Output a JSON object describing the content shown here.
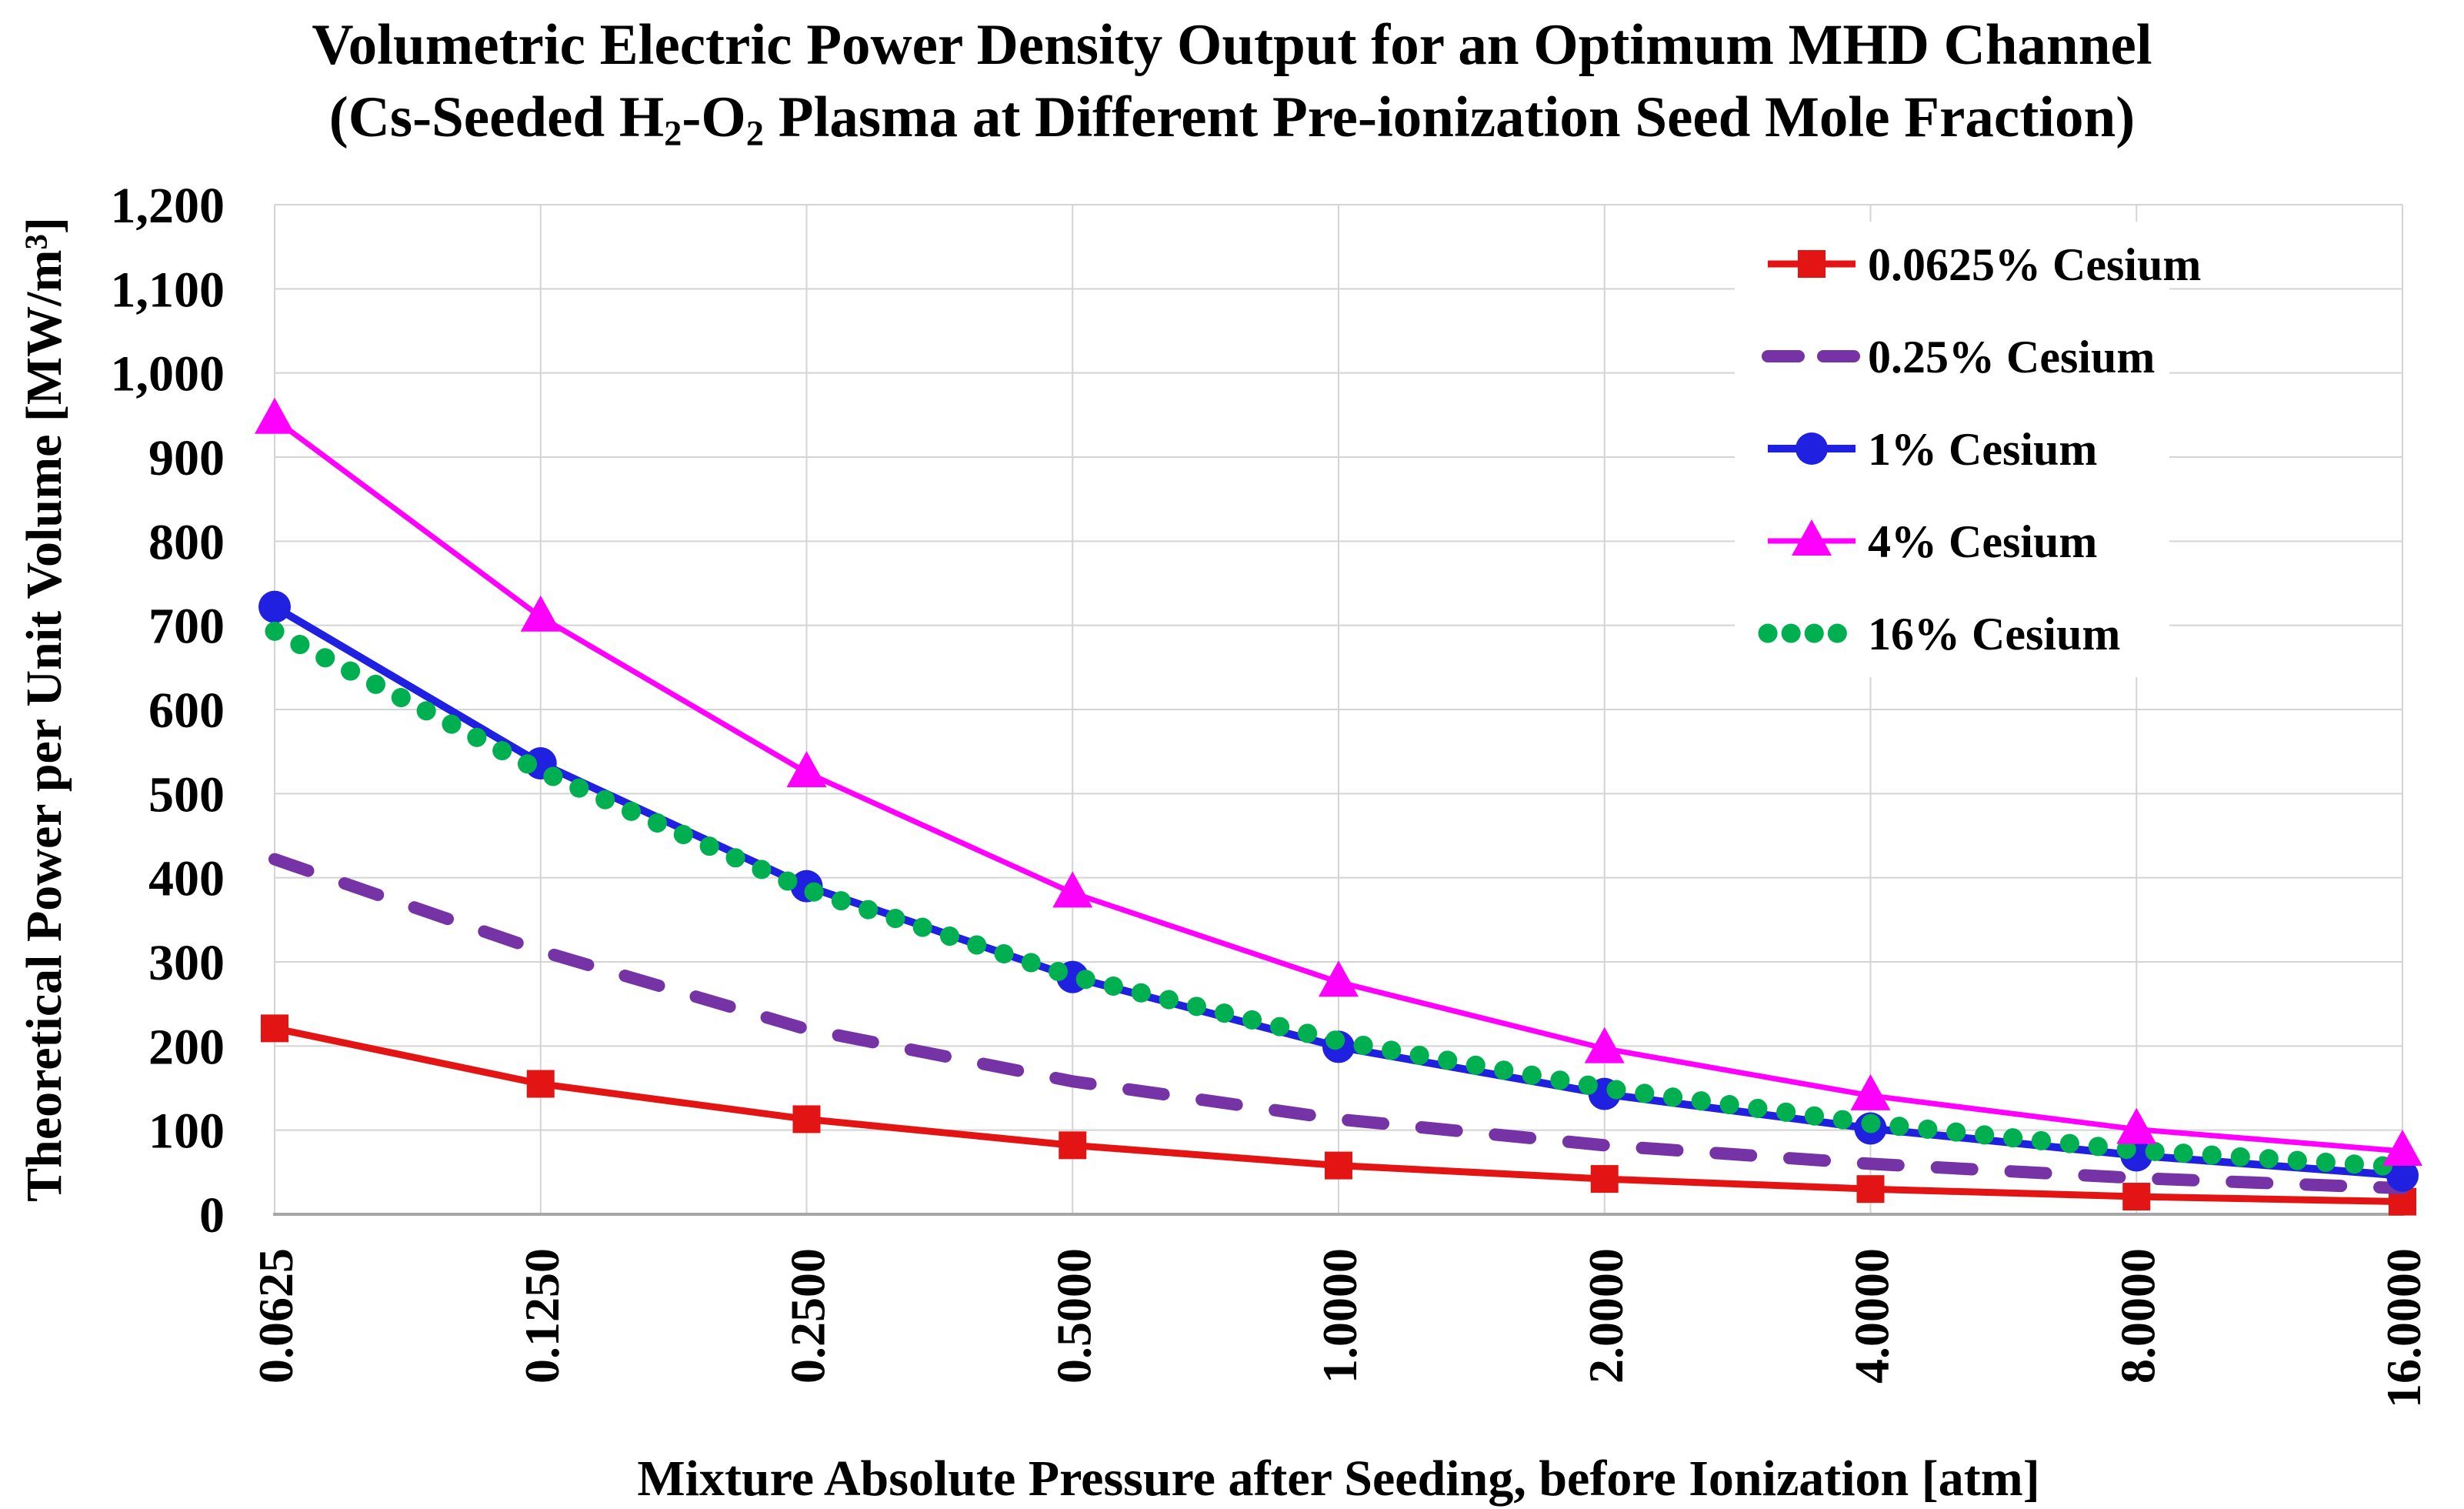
{
  "title": {
    "line1": "Volumetric Electric Power Density Output for an Optimum MHD Channel",
    "line2_pre": "(Cs-Seeded H",
    "line2_sub1": "2",
    "line2_mid": "-O",
    "line2_sub2": "2",
    "line2_post": " Plasma at Different Pre-ionization Seed Mole Fraction)"
  },
  "axes": {
    "y_label_pre": "Theoretical Power per Unit Volume [MW/m",
    "y_label_sup": "3",
    "y_label_post": "]",
    "x_label": "Mixture Absolute Pressure after Seeding, before Ionization [atm]"
  },
  "colors": {
    "gridline": "#d4d4d4",
    "axis_line": "#a6a6a6",
    "text": "#000000",
    "background": "#ffffff",
    "red": "#e31414",
    "purple": "#7533a6",
    "blue": "#2020e0",
    "magenta": "#ff00ff",
    "green": "#00b050"
  },
  "chart_data": {
    "type": "line",
    "title": "Volumetric Electric Power Density Output for an Optimum MHD Channel (Cs-Seeded H2-O2 Plasma at Different Pre-ionization Seed Mole Fraction)",
    "xlabel": "Mixture Absolute Pressure after Seeding, before Ionization [atm]",
    "ylabel": "Theoretical Power per Unit Volume [MW/m3]",
    "categories": [
      "0.0625",
      "0.1250",
      "0.2500",
      "0.5000",
      "1.0000",
      "2.0000",
      "4.0000",
      "8.0000",
      "16.0000"
    ],
    "x_scale": "log-categorical",
    "ylim": [
      0,
      1200
    ],
    "y_tick_step": 100,
    "y_tick_labels": [
      "0",
      "100",
      "200",
      "300",
      "400",
      "500",
      "600",
      "700",
      "800",
      "900",
      "1,000",
      "1,100",
      "1,200"
    ],
    "grid": true,
    "legend_position": "top-right-inside",
    "series": [
      {
        "name": "0.0625% Cesium",
        "color": "#e31414",
        "line_style": "solid",
        "marker": "square",
        "values": [
          221,
          155,
          113,
          82,
          58,
          42,
          30,
          21,
          15
        ]
      },
      {
        "name": "0.25% Cesium",
        "color": "#7533a6",
        "line_style": "dashed",
        "marker": "none",
        "values": [
          422,
          313,
          220,
          158,
          113,
          82,
          60,
          43,
          31
        ]
      },
      {
        "name": "1% Cesium",
        "color": "#2020e0",
        "line_style": "solid",
        "marker": "circle",
        "values": [
          722,
          536,
          390,
          282,
          199,
          143,
          102,
          70,
          46
        ]
      },
      {
        "name": "4% Cesium",
        "color": "#ff00ff",
        "line_style": "solid",
        "marker": "triangle",
        "values": [
          945,
          710,
          525,
          382,
          276,
          197,
          141,
          101,
          75
        ]
      },
      {
        "name": "16% Cesium",
        "color": "#00b050",
        "line_style": "dotted",
        "marker": "none",
        "values": [
          693,
          527,
          386,
          283,
          206,
          150,
          108,
          76,
          56
        ]
      }
    ]
  }
}
